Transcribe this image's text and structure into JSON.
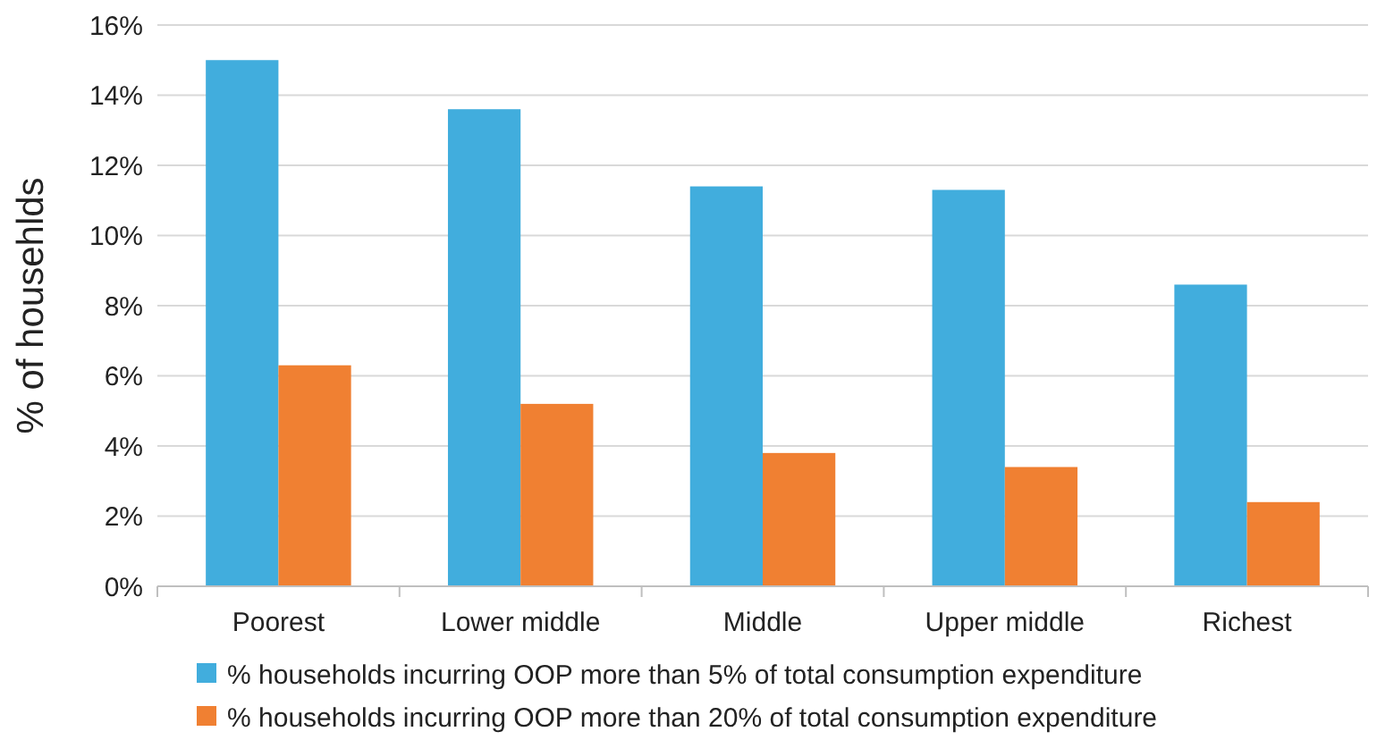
{
  "chart_data": {
    "type": "bar",
    "ylabel": "% of househlds",
    "categories": [
      "Poorest",
      "Lower middle",
      "Middle",
      "Upper middle",
      "Richest"
    ],
    "series": [
      {
        "name": "% households incurring OOP more than 5% of total consumption expenditure",
        "color": "#41addd",
        "values": [
          15.0,
          13.6,
          11.4,
          11.3,
          8.6
        ]
      },
      {
        "name": "% households incurring OOP more than 20% of total consumption expenditure",
        "color": "#f08032",
        "values": [
          6.3,
          5.2,
          3.8,
          3.4,
          2.4
        ]
      }
    ],
    "ylim": [
      0,
      16
    ],
    "yticks": [
      {
        "value": 0,
        "label": "0%"
      },
      {
        "value": 2,
        "label": "2%"
      },
      {
        "value": 4,
        "label": "4%"
      },
      {
        "value": 6,
        "label": "6%"
      },
      {
        "value": 8,
        "label": "8%"
      },
      {
        "value": 10,
        "label": "10%"
      },
      {
        "value": 12,
        "label": "12%"
      },
      {
        "value": 14,
        "label": "14%"
      },
      {
        "value": 16,
        "label": "16%"
      }
    ],
    "grid": "y",
    "legend": "bottom"
  }
}
